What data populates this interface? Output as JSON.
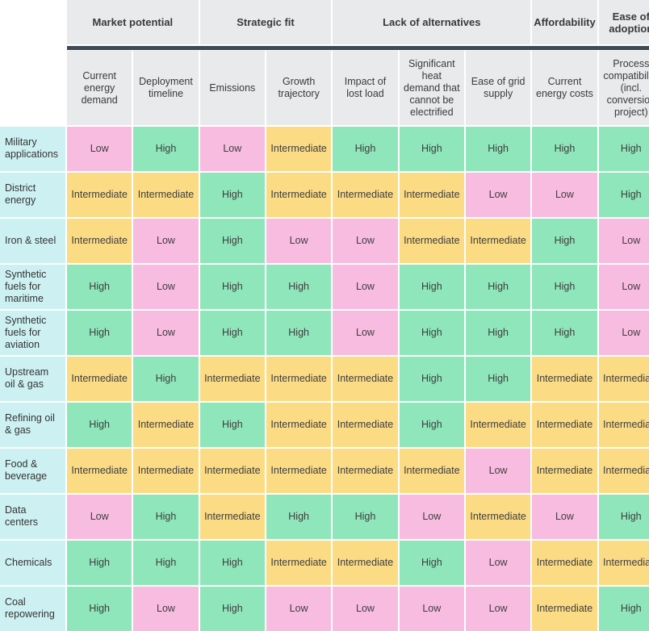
{
  "colors": {
    "High": "#8fe6bb",
    "Intermediate": "#fcdb85",
    "Low": "#f9bce1",
    "row_label_bg": "#cdf1f2",
    "header_bg": "#e8eaec",
    "header_bar": "#3f4a55"
  },
  "groups": [
    {
      "label": "Market potential",
      "span": 2
    },
    {
      "label": "Strategic fit",
      "span": 2
    },
    {
      "label": "Lack of alternatives",
      "span": 3
    },
    {
      "label": "Affordability",
      "span": 1
    },
    {
      "label": "Ease of adoption",
      "span": 1
    }
  ],
  "columns": [
    "Current energy demand",
    "Deployment timeline",
    "Emissions",
    "Growth trajectory",
    "Impact of lost load",
    "Significant heat demand that cannot be electrified",
    "Ease of grid supply",
    "Current energy costs",
    "Process compatibility (incl. conversion project)"
  ],
  "rows": [
    {
      "label": "Military applications",
      "values": [
        "Low",
        "High",
        "Low",
        "Intermediate",
        "High",
        "High",
        "High",
        "High",
        "High"
      ]
    },
    {
      "label": "District energy",
      "values": [
        "Intermediate",
        "Intermediate",
        "High",
        "Intermediate",
        "Intermediate",
        "Intermediate",
        "Low",
        "Low",
        "High"
      ]
    },
    {
      "label": "Iron & steel",
      "values": [
        "Intermediate",
        "Low",
        "High",
        "Low",
        "Low",
        "Intermediate",
        "Intermediate",
        "High",
        "Low"
      ]
    },
    {
      "label": "Synthetic fuels for maritime",
      "values": [
        "High",
        "Low",
        "High",
        "High",
        "Low",
        "High",
        "High",
        "High",
        "Low"
      ]
    },
    {
      "label": "Synthetic fuels for aviation",
      "values": [
        "High",
        "Low",
        "High",
        "High",
        "Low",
        "High",
        "High",
        "High",
        "Low"
      ]
    },
    {
      "label": "Upstream oil & gas",
      "values": [
        "Intermediate",
        "High",
        "Intermediate",
        "Intermediate",
        "Intermediate",
        "High",
        "High",
        "Intermediate",
        "Intermediate"
      ]
    },
    {
      "label": "Refining oil & gas",
      "values": [
        "High",
        "Intermediate",
        "High",
        "Intermediate",
        "Intermediate",
        "High",
        "Intermediate",
        "Intermediate",
        "Intermediate"
      ]
    },
    {
      "label": "Food & beverage",
      "values": [
        "Intermediate",
        "Intermediate",
        "Intermediate",
        "Intermediate",
        "Intermediate",
        "Intermediate",
        "Low",
        "Intermediate",
        "Intermediate"
      ]
    },
    {
      "label": "Data centers",
      "values": [
        "Low",
        "High",
        "Intermediate",
        "High",
        "High",
        "Low",
        "Intermediate",
        "Low",
        "High"
      ]
    },
    {
      "label": "Chemicals",
      "values": [
        "High",
        "High",
        "High",
        "Intermediate",
        "Intermediate",
        "High",
        "Low",
        "Intermediate",
        "Intermediate"
      ]
    },
    {
      "label": "Coal repowering",
      "values": [
        "High",
        "Low",
        "High",
        "Low",
        "Low",
        "Low",
        "Low",
        "Intermediate",
        "High"
      ]
    }
  ]
}
